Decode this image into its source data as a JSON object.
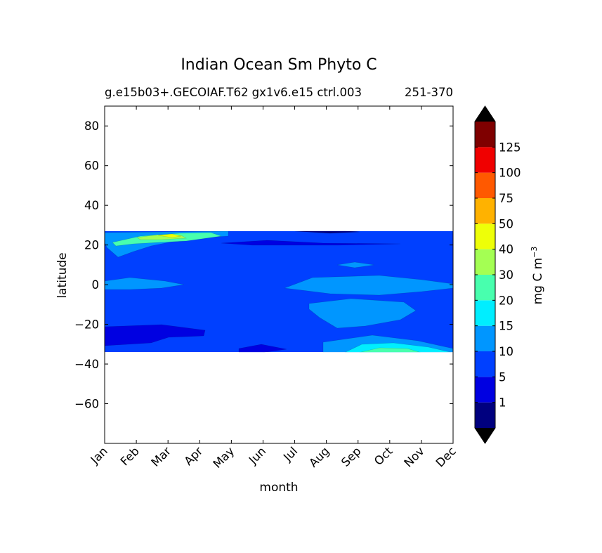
{
  "chart_data": {
    "type": "heatmap",
    "title": "Indian Ocean Sm Phyto C",
    "subtitle": "g.e15b03+.GECOIAF.T62 gx1v6.e15 ctrl.003",
    "subtitle_right": "251-370",
    "xlabel": "month",
    "ylabel": "latitude",
    "x_ticks": [
      "Jan",
      "Feb",
      "Mar",
      "Apr",
      "May",
      "Jun",
      "Jul",
      "Aug",
      "Sep",
      "Oct",
      "Nov",
      "Dec"
    ],
    "ylim": [
      -80,
      90
    ],
    "y_ticks": [
      80,
      60,
      40,
      20,
      0,
      -20,
      -40,
      -60
    ],
    "y_tick_labels": [
      "80",
      "60",
      "40",
      "20",
      "0",
      "−20",
      "−40",
      "−60"
    ],
    "data_lat_range": [
      -34,
      27
    ],
    "colorbar": {
      "label": "mg C m",
      "label_exp": "−3",
      "extend": "both",
      "levels": [
        0,
        1,
        5,
        10,
        15,
        20,
        30,
        40,
        50,
        75,
        100,
        125,
        150
      ],
      "tick_labels": [
        "1",
        "5",
        "10",
        "15",
        "20",
        "30",
        "40",
        "50",
        "75",
        "100",
        "125"
      ],
      "colors": [
        "#00007f",
        "#0000e1",
        "#0040ff",
        "#0096ff",
        "#00eeff",
        "#48ffae",
        "#a4ff53",
        "#eeff08",
        "#ffb200",
        "#ff5900",
        "#f00000",
        "#7f0000"
      ],
      "under_color": "#000000",
      "over_color": "#000000"
    },
    "regions": [
      {
        "level_index": 2,
        "desc": "background 5-10"
      },
      {
        "level_index": 3,
        "desc": "north band Jan-May near 20-27N"
      },
      {
        "level_index": 5,
        "desc": "Feb-Apr near 24N"
      },
      {
        "level_index": 6,
        "desc": "Mar near 25N"
      },
      {
        "level_index": 7,
        "desc": "Mar peak near 25N"
      },
      {
        "level_index": 3,
        "desc": "equatorial band Jan-Mar near 0"
      },
      {
        "level_index": 1,
        "desc": "Jan-Apr near -22"
      },
      {
        "level_index": 1,
        "desc": "Jun near -32"
      },
      {
        "level_index": 1,
        "desc": "Jul-Sep near 21N"
      },
      {
        "level_index": 0,
        "desc": "Aug near 27N"
      },
      {
        "level_index": 3,
        "desc": "Aug-Dec near 0"
      },
      {
        "level_index": 3,
        "desc": "Sep near 10N"
      },
      {
        "level_index": 3,
        "desc": "Aug-Oct near -15"
      },
      {
        "level_index": 3,
        "desc": "Sep-Dec near -32"
      },
      {
        "level_index": 4,
        "desc": "Oct-Nov near -32"
      },
      {
        "level_index": 5,
        "desc": "Oct near -33"
      }
    ]
  }
}
